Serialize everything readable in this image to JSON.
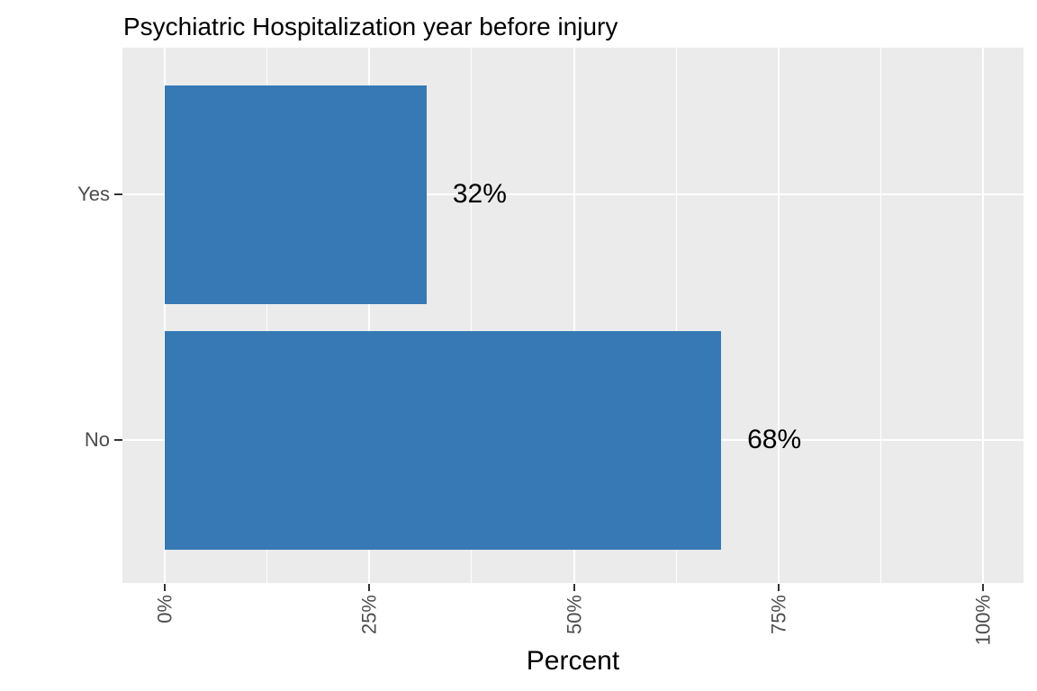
{
  "chart_data": {
    "type": "bar",
    "orientation": "horizontal",
    "title": "Psychiatric Hospitalization year before injury",
    "xlabel": "Percent",
    "ylabel": "",
    "categories": [
      "Yes",
      "No"
    ],
    "values": [
      32,
      68
    ],
    "bar_labels": [
      "32%",
      "68%"
    ],
    "xlim": [
      0,
      100
    ],
    "x_ticks": [
      {
        "value": 0,
        "label": "0%"
      },
      {
        "value": 25,
        "label": "25%"
      },
      {
        "value": 50,
        "label": "50%"
      },
      {
        "value": 75,
        "label": "75%"
      },
      {
        "value": 100,
        "label": "100%"
      }
    ],
    "x_minor_ticks": [
      12.5,
      37.5,
      62.5,
      87.5
    ],
    "grid": "white major and minor gridlines on gray panel",
    "legend": "none",
    "colors": {
      "bar": "#3679B5",
      "panel_bg": "#EBEBEB",
      "grid": "#FFFFFF",
      "tick_text": "#4D4D4D",
      "tick_mark": "#333333",
      "text": "#000000"
    }
  }
}
